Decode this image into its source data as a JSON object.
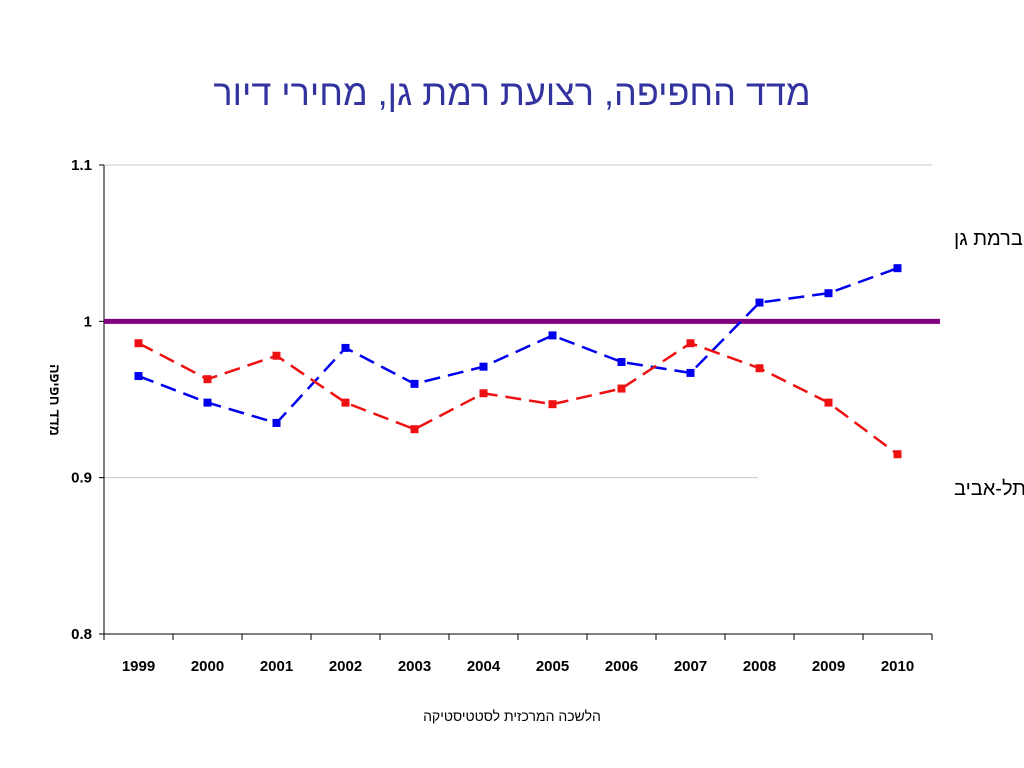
{
  "chart_data": {
    "type": "line",
    "title": "מדד החפיפה, רצועת רמת גן, מחירי דיור",
    "ylabel": "מדד חפיפה",
    "xlabel": "",
    "categories": [
      "1999",
      "2000",
      "2001",
      "2002",
      "2003",
      "2004",
      "2005",
      "2006",
      "2007",
      "2008",
      "2009",
      "2010"
    ],
    "ylim": [
      0.8,
      1.1
    ],
    "yticks": [
      "0.8",
      "0.9",
      "1",
      "1.1"
    ],
    "grid": true,
    "reference_line": {
      "value": 1.0,
      "color": "#800080"
    },
    "series": [
      {
        "name": "תל-אביב ברמת גן",
        "color": "#0000ee",
        "values": [
          0.965,
          0.948,
          0.935,
          0.983,
          0.96,
          0.971,
          0.991,
          0.974,
          0.967,
          1.012,
          1.018,
          1.034
        ]
      },
      {
        "name": "רמת גן בתל-אביב",
        "color": "#ee1111",
        "values": [
          0.986,
          0.963,
          0.978,
          0.948,
          0.931,
          0.954,
          0.947,
          0.957,
          0.986,
          0.97,
          0.948,
          0.915
        ]
      }
    ]
  },
  "footer": {
    "source": "הלשכה המרכזית לסטטיסטיקה"
  }
}
